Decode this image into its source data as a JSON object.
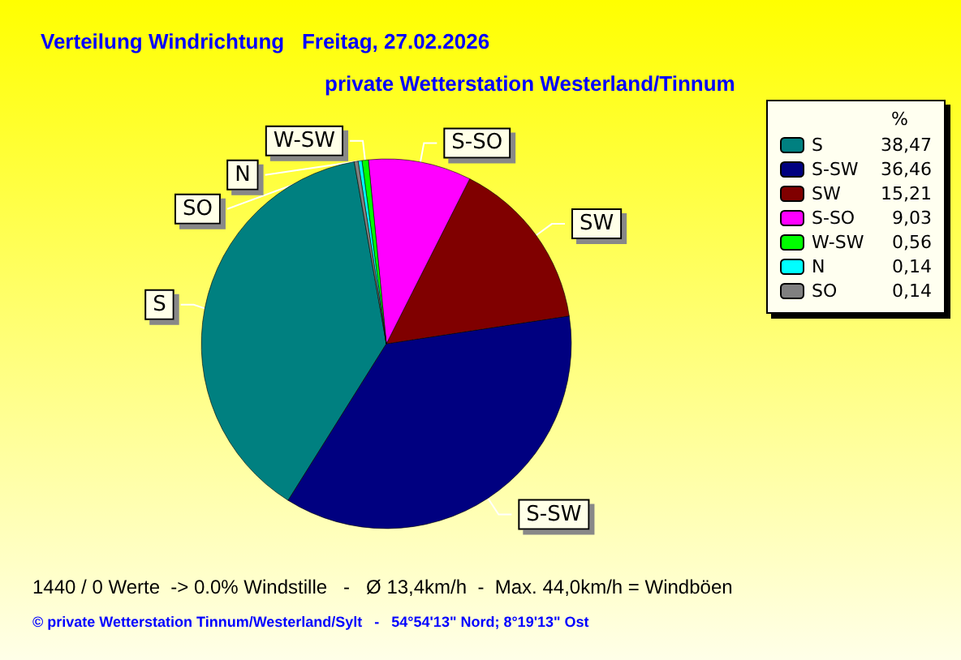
{
  "chart_data": {
    "type": "pie",
    "title": "Verteilung Windrichtung   Freitag, 27.02.2026",
    "subtitle": "private Wetterstation Westerland/Tinnum",
    "legend_title": "%",
    "categories": [
      "S",
      "S-SW",
      "SW",
      "S-SO",
      "W-SW",
      "N",
      "SO"
    ],
    "values": [
      38.47,
      36.46,
      15.21,
      9.03,
      0.56,
      0.14,
      0.14
    ],
    "colors": [
      "#008080",
      "#000080",
      "#800000",
      "#ff00ff",
      "#00ff00",
      "#00ffff",
      "#808080"
    ],
    "value_labels": [
      "38,47",
      "36,46",
      "15,21",
      "9,03",
      "0,56",
      "0,14",
      "0,14"
    ],
    "legend": "top right",
    "annotations": [
      "1440 / 0 Werte  -> 0.0% Windstille   -   Ø 13,4km/h  -  Max. 44,0km/h = Windböen",
      "© private Wetterstation Tinnum/Westerland/Sylt   -   54°54'13\" Nord; 8°19'13\" Ost"
    ]
  }
}
